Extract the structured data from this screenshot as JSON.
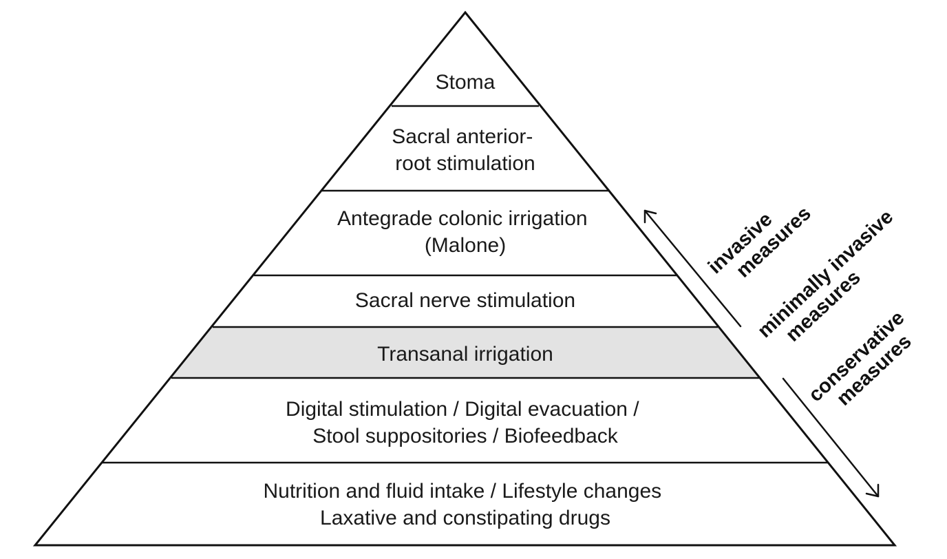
{
  "pyramid": {
    "levels": [
      {
        "lines": [
          "Stoma"
        ]
      },
      {
        "lines": [
          "Sacral anterior-",
          "root stimulation"
        ]
      },
      {
        "lines": [
          "Antegrade colonic irrigation",
          "(Malone)"
        ]
      },
      {
        "lines": [
          "Sacral nerve stimulation"
        ]
      },
      {
        "lines": [
          "Transanal irrigation"
        ],
        "highlighted": true
      },
      {
        "lines": [
          "Digital stimulation / Digital evacuation /",
          "Stool suppositories / Biofeedback"
        ]
      },
      {
        "lines": [
          "Nutrition and fluid intake / Lifestyle changes",
          "Laxative and constipating drugs"
        ]
      }
    ],
    "colors": {
      "outline": "#111111",
      "fill": "#ffffff",
      "highlight": "#e3e3e3",
      "text": "#1a1a1a"
    }
  },
  "side_labels": {
    "invasive": [
      "invasive",
      "measures"
    ],
    "minimally_invasive": [
      "minimally invasive",
      "measures"
    ],
    "conservative": [
      "conservative",
      "measures"
    ]
  }
}
